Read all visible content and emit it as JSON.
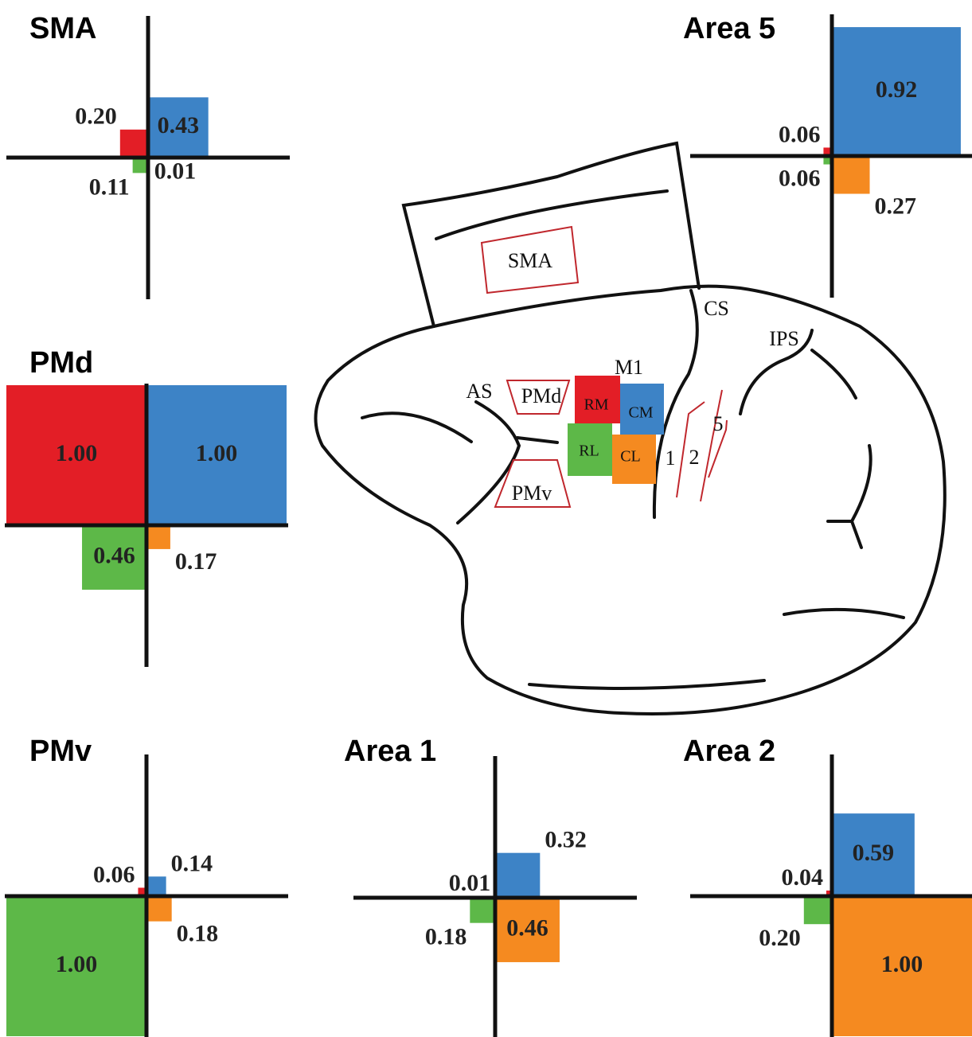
{
  "chart_data": [
    {
      "type": "quadrant",
      "title": "SMA",
      "values": [
        0.2,
        0.43,
        0.11,
        0.01
      ],
      "value_labels": [
        "0.20",
        "0.43",
        "0.11",
        "0.01"
      ],
      "colors": [
        "#e31e26",
        "#3d83c6",
        "#5db848",
        "#f58a20"
      ]
    },
    {
      "type": "quadrant",
      "title": "Area 5",
      "values": [
        0.06,
        0.92,
        0.06,
        0.27
      ],
      "value_labels": [
        "0.06",
        "0.92",
        "0.06",
        "0.27"
      ],
      "colors": [
        "#e31e26",
        "#3d83c6",
        "#5db848",
        "#f58a20"
      ]
    },
    {
      "type": "quadrant",
      "title": "PMd",
      "values": [
        1,
        1,
        0.46,
        0.17
      ],
      "value_labels": [
        "1.00",
        "1.00",
        "0.46",
        "0.17"
      ],
      "colors": [
        "#e31e26",
        "#3d83c6",
        "#5db848",
        "#f58a20"
      ]
    },
    {
      "type": "quadrant",
      "title": "PMv",
      "values": [
        0.06,
        0.14,
        1,
        0.18
      ],
      "value_labels": [
        "0.06",
        "0.14",
        "1.00",
        "0.18"
      ],
      "colors": [
        "#e31e26",
        "#3d83c6",
        "#5db848",
        "#f58a20"
      ]
    },
    {
      "type": "quadrant",
      "title": "Area 1",
      "values": [
        0.01,
        0.32,
        0.18,
        0.46
      ],
      "value_labels": [
        "0.01",
        "0.32",
        "0.18",
        "0.46"
      ],
      "colors": [
        "#e31e26",
        "#3d83c6",
        "#5db848",
        "#f58a20"
      ]
    },
    {
      "type": "quadrant",
      "title": "Area 2",
      "values": [
        0.04,
        0.59,
        0.2,
        1
      ],
      "value_labels": [
        "0.04",
        "0.59",
        "0.20",
        "1.00"
      ],
      "colors": [
        "#e31e26",
        "#3d83c6",
        "#5db848",
        "#f58a20"
      ]
    }
  ],
  "diagram": {
    "labels": [
      "SMA",
      "CS",
      "IPS",
      "AS",
      "PMd",
      "PMv",
      "M1",
      "RM",
      "CM",
      "RL",
      "CL",
      "1",
      "2",
      "5"
    ]
  }
}
